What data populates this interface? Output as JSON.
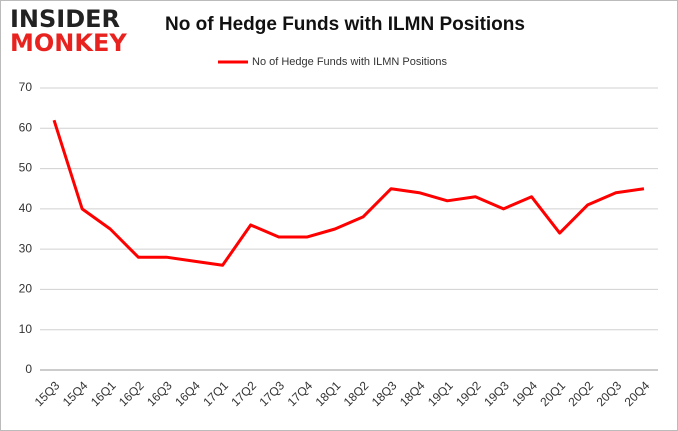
{
  "logo": {
    "line1": "INSIDER",
    "line2": "MONKEY"
  },
  "chart_data": {
    "type": "line",
    "title": "No of Hedge Funds with ILMN Positions",
    "categories": [
      "15Q3",
      "15Q4",
      "16Q1",
      "16Q2",
      "16Q3",
      "16Q4",
      "17Q1",
      "17Q2",
      "17Q3",
      "17Q4",
      "18Q1",
      "18Q2",
      "18Q3",
      "18Q4",
      "19Q1",
      "19Q2",
      "19Q3",
      "19Q4",
      "20Q1",
      "20Q2",
      "20Q3",
      "20Q4"
    ],
    "series": [
      {
        "name": "No of Hedge Funds with ILMN Positions",
        "color": "#ff0000",
        "values": [
          62,
          40,
          35,
          28,
          28,
          27,
          26,
          36,
          33,
          33,
          35,
          38,
          45,
          44,
          42,
          43,
          40,
          43,
          34,
          41,
          44,
          45
        ]
      }
    ],
    "ylim": [
      0,
      70
    ],
    "yticks": [
      0,
      10,
      20,
      30,
      40,
      50,
      60,
      70
    ],
    "grid": true,
    "legend": "top"
  }
}
